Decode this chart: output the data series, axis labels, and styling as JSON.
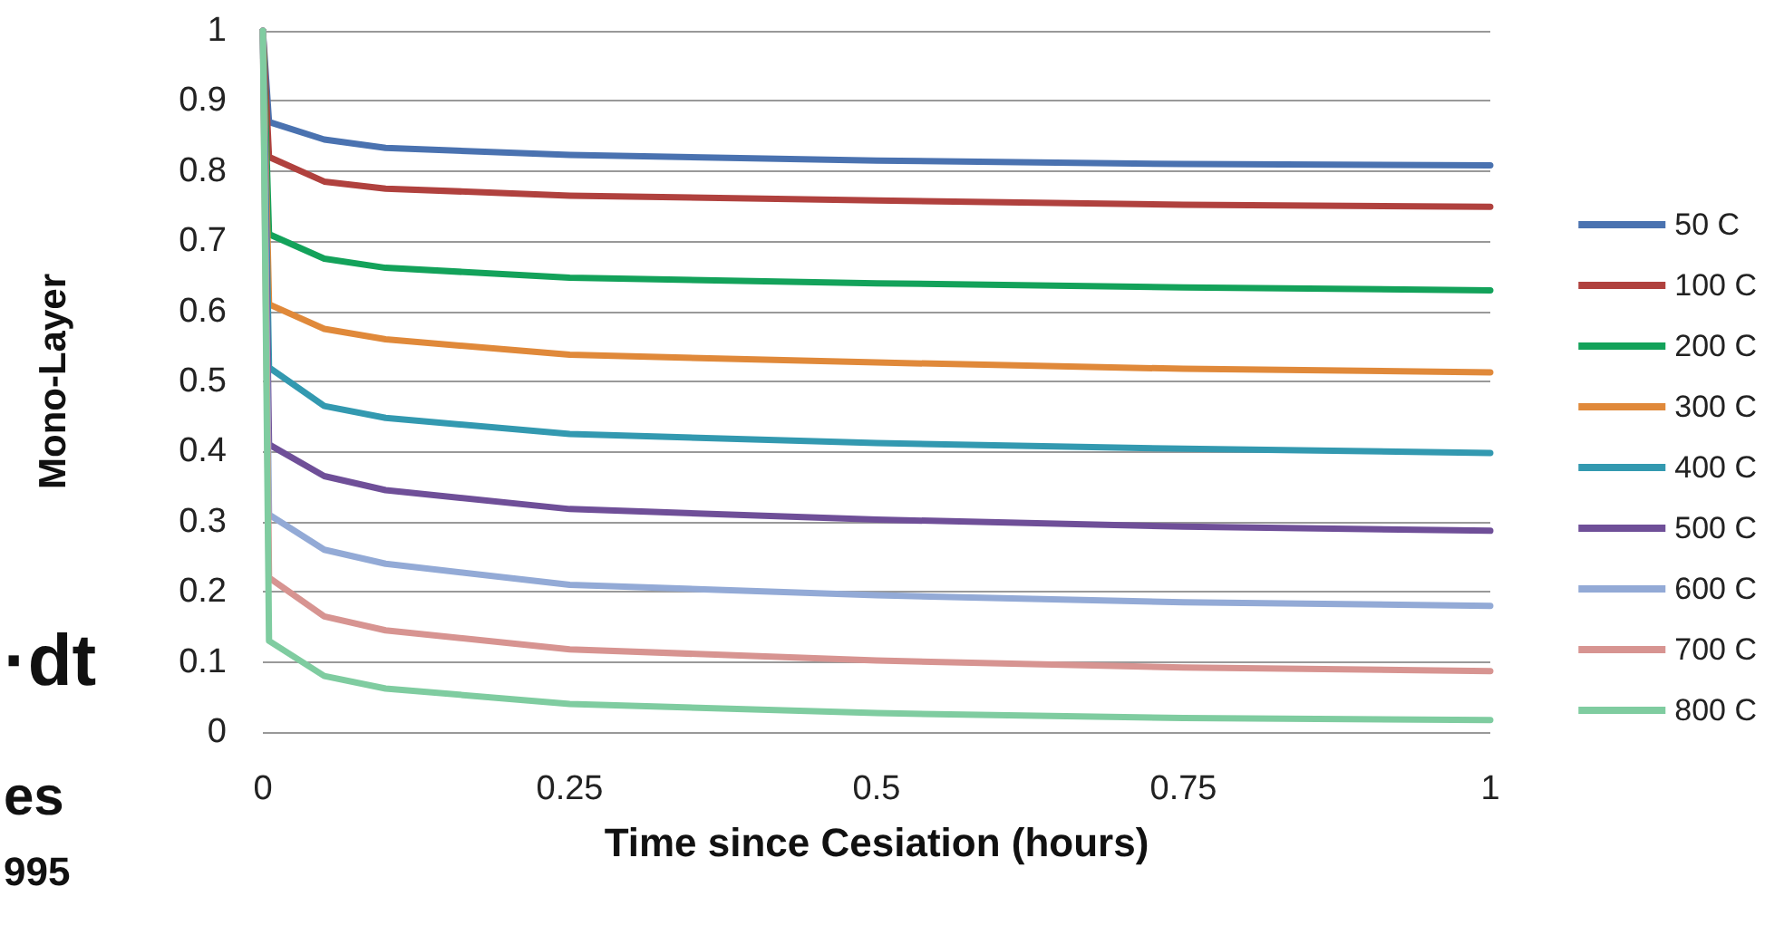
{
  "chart_data": {
    "type": "line",
    "xlabel": "Time since Cesiation (hours)",
    "ylabel": "Mono-Layer",
    "x": [
      0,
      0.005,
      0.05,
      0.1,
      0.25,
      0.5,
      0.75,
      1
    ],
    "series": [
      {
        "name": "50 C",
        "color": "#4a72b0",
        "values": [
          1,
          0.87,
          0.845,
          0.833,
          0.823,
          0.815,
          0.81,
          0.808
        ]
      },
      {
        "name": "100 C",
        "color": "#b0413e",
        "values": [
          1,
          0.82,
          0.785,
          0.775,
          0.765,
          0.758,
          0.752,
          0.749
        ]
      },
      {
        "name": "200 C",
        "color": "#13a25a",
        "values": [
          1,
          0.71,
          0.675,
          0.662,
          0.648,
          0.64,
          0.634,
          0.63
        ]
      },
      {
        "name": "300 C",
        "color": "#e0893a",
        "values": [
          1,
          0.61,
          0.575,
          0.56,
          0.538,
          0.527,
          0.518,
          0.513
        ]
      },
      {
        "name": "400 C",
        "color": "#3399b0",
        "values": [
          1,
          0.52,
          0.465,
          0.448,
          0.425,
          0.412,
          0.404,
          0.398
        ]
      },
      {
        "name": "500 C",
        "color": "#6f4f98",
        "values": [
          1,
          0.41,
          0.365,
          0.345,
          0.318,
          0.303,
          0.293,
          0.287
        ]
      },
      {
        "name": "600 C",
        "color": "#93aad6",
        "values": [
          1,
          0.31,
          0.26,
          0.24,
          0.21,
          0.195,
          0.185,
          0.18
        ]
      },
      {
        "name": "700 C",
        "color": "#d79491",
        "values": [
          1,
          0.22,
          0.165,
          0.145,
          0.118,
          0.102,
          0.092,
          0.087
        ]
      },
      {
        "name": "800 C",
        "color": "#7fcca0",
        "values": [
          1,
          0.13,
          0.08,
          0.062,
          0.04,
          0.027,
          0.02,
          0.017
        ]
      }
    ],
    "xlim": [
      0,
      1
    ],
    "xticks": [
      0,
      0.25,
      0.5,
      0.75,
      1
    ],
    "ylim": [
      0,
      1
    ],
    "yticks": [
      0,
      0.1,
      0.2,
      0.3,
      0.4,
      0.5,
      0.6,
      0.7,
      0.8,
      0.9,
      1
    ],
    "grid": "y",
    "legend": "right",
    "marker": "none",
    "line_style": "solid",
    "annotations": [
      "·dt",
      "es",
      "995"
    ]
  }
}
